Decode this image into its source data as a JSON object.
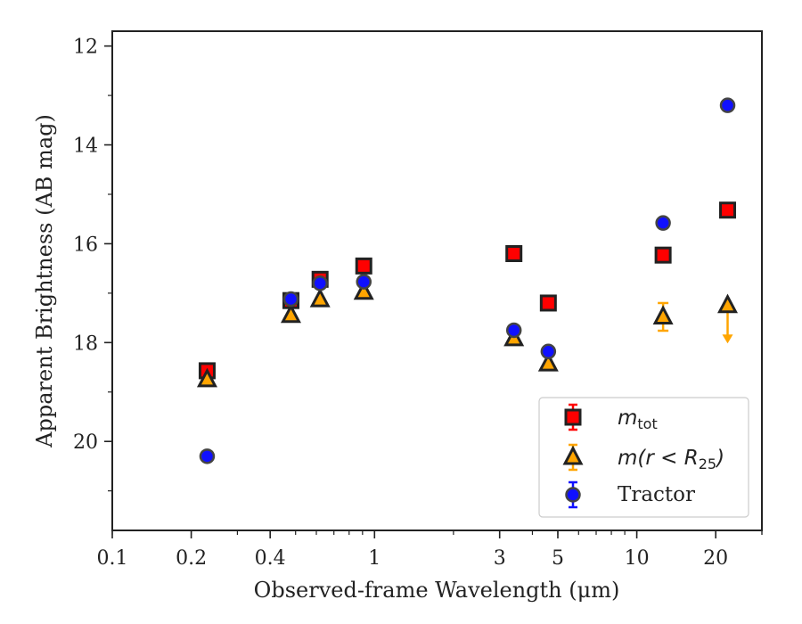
{
  "chart_data": {
    "type": "scatter",
    "title": "",
    "xlabel": "Observed-frame Wavelength (μm)",
    "ylabel": "Apparent Brightness (AB mag)",
    "x_scale": "log",
    "xlim": [
      0.1,
      30
    ],
    "ylim": [
      21.8,
      11.7
    ],
    "y_inverted": true,
    "x_ticks": [
      0.1,
      0.2,
      0.4,
      1,
      3,
      5,
      10,
      20
    ],
    "x_tick_labels": [
      "0.1",
      "0.2",
      "0.4",
      "1",
      "3",
      "5",
      "10",
      "20"
    ],
    "y_ticks": [
      12,
      14,
      16,
      18,
      20
    ],
    "y_tick_labels": [
      "12",
      "14",
      "16",
      "18",
      "20"
    ],
    "legend_position": "lower right",
    "series": [
      {
        "name": "m_tot",
        "marker": "square",
        "color": "#ff0000",
        "edge_color": "#222222",
        "points": [
          {
            "x": 0.23,
            "y": 18.57
          },
          {
            "x": 0.48,
            "y": 17.15
          },
          {
            "x": 0.62,
            "y": 16.72
          },
          {
            "x": 0.91,
            "y": 16.45
          },
          {
            "x": 3.4,
            "y": 16.2
          },
          {
            "x": 4.6,
            "y": 17.2
          },
          {
            "x": 12.6,
            "y": 16.23
          },
          {
            "x": 22.2,
            "y": 15.32
          }
        ]
      },
      {
        "name": "m(r<R25)",
        "marker": "triangle",
        "color": "#ffa500",
        "edge_color": "#222222",
        "points": [
          {
            "x": 0.23,
            "y": 18.75
          },
          {
            "x": 0.48,
            "y": 17.45
          },
          {
            "x": 0.62,
            "y": 17.13
          },
          {
            "x": 0.91,
            "y": 16.98
          },
          {
            "x": 3.4,
            "y": 17.92
          },
          {
            "x": 4.6,
            "y": 18.43
          },
          {
            "x": 12.6,
            "y": 17.48,
            "err": 0.28
          },
          {
            "x": 22.2,
            "y": 17.25,
            "upper_limit": true
          }
        ]
      },
      {
        "name": "Tractor",
        "marker": "circle",
        "color": "#1010ff",
        "edge_color": "#444444",
        "points": [
          {
            "x": 0.23,
            "y": 20.3
          },
          {
            "x": 0.48,
            "y": 17.12
          },
          {
            "x": 0.62,
            "y": 16.8
          },
          {
            "x": 0.91,
            "y": 16.77
          },
          {
            "x": 3.4,
            "y": 17.75
          },
          {
            "x": 4.6,
            "y": 18.18
          },
          {
            "x": 12.6,
            "y": 15.58
          },
          {
            "x": 22.2,
            "y": 13.2
          }
        ]
      }
    ],
    "legend": {
      "m_tot": {
        "main": "m",
        "sub": "tot"
      },
      "m_r25": {
        "main": "m(r < R",
        "sub": "25",
        "tail": ")"
      },
      "tractor": "Tractor"
    }
  }
}
